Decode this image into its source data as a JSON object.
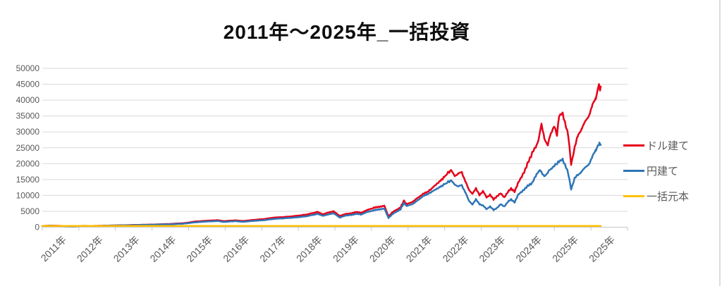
{
  "chart_data": {
    "type": "line",
    "title": "2011年～2025年_一括投資",
    "x_tick_labels": [
      "2011年",
      "2012年",
      "2013年",
      "2014年",
      "2015年",
      "2016年",
      "2017年",
      "2018年",
      "2019年",
      "2020年",
      "2021年",
      "2022年",
      "2023年",
      "2024年",
      "2025年",
      "2025年"
    ],
    "y_ticks": [
      0,
      5000,
      10000,
      15000,
      20000,
      25000,
      30000,
      35000,
      40000,
      45000,
      50000
    ],
    "ylim": [
      0,
      50000
    ],
    "grid": "horizontal",
    "legend_position": "right",
    "axis_text_color": "#595959",
    "gridline_color": "#d9d9d9",
    "axis_line_color": "#c6c6c6",
    "frame_right_border_color": "#dcdcdc",
    "series": [
      {
        "name": "ドル建て",
        "color": "#e60019",
        "jagged": true,
        "points": [
          [
            0,
            400
          ],
          [
            0.0145,
            470
          ],
          [
            0.0301,
            430
          ],
          [
            0.0422,
            360
          ],
          [
            0.0542,
            340
          ],
          [
            0.0699,
            420
          ],
          [
            0.0843,
            400
          ],
          [
            0.1024,
            450
          ],
          [
            0.1241,
            560
          ],
          [
            0.1446,
            650
          ],
          [
            0.1687,
            750
          ],
          [
            0.1867,
            820
          ],
          [
            0.1976,
            900
          ],
          [
            0.2169,
            1000
          ],
          [
            0.241,
            1250
          ],
          [
            0.2627,
            1800
          ],
          [
            0.2831,
            2050
          ],
          [
            0.2988,
            2200
          ],
          [
            0.3108,
            1900
          ],
          [
            0.3289,
            2150
          ],
          [
            0.3434,
            1950
          ],
          [
            0.3614,
            2300
          ],
          [
            0.3795,
            2550
          ],
          [
            0.3952,
            3000
          ],
          [
            0.4133,
            3200
          ],
          [
            0.4313,
            3500
          ],
          [
            0.4494,
            3900
          ],
          [
            0.4614,
            4400
          ],
          [
            0.4699,
            4800
          ],
          [
            0.4795,
            4100
          ],
          [
            0.4892,
            4600
          ],
          [
            0.4976,
            5000
          ],
          [
            0.5084,
            3500
          ],
          [
            0.5181,
            4200
          ],
          [
            0.5265,
            4300
          ],
          [
            0.5361,
            4800
          ],
          [
            0.5446,
            4500
          ],
          [
            0.5542,
            5300
          ],
          [
            0.5663,
            6100
          ],
          [
            0.5759,
            6400
          ],
          [
            0.5843,
            6800
          ],
          [
            0.5916,
            3300
          ],
          [
            0.5976,
            4600
          ],
          [
            0.6024,
            5200
          ],
          [
            0.612,
            6200
          ],
          [
            0.6181,
            8300
          ],
          [
            0.6229,
            7200
          ],
          [
            0.6325,
            8000
          ],
          [
            0.641,
            9200
          ],
          [
            0.6506,
            10500
          ],
          [
            0.6578,
            11000
          ],
          [
            0.6651,
            12000
          ],
          [
            0.6747,
            13800
          ],
          [
            0.6819,
            15000
          ],
          [
            0.6867,
            15800
          ],
          [
            0.6916,
            16800
          ],
          [
            0.6988,
            17800
          ],
          [
            0.7048,
            16200
          ],
          [
            0.7108,
            16800
          ],
          [
            0.7169,
            17300
          ],
          [
            0.7229,
            14500
          ],
          [
            0.7289,
            11700
          ],
          [
            0.7349,
            10600
          ],
          [
            0.741,
            12100
          ],
          [
            0.747,
            10200
          ],
          [
            0.753,
            11300
          ],
          [
            0.759,
            9400
          ],
          [
            0.7651,
            10200
          ],
          [
            0.7711,
            8700
          ],
          [
            0.7771,
            9800
          ],
          [
            0.7831,
            10600
          ],
          [
            0.7892,
            9400
          ],
          [
            0.7952,
            11000
          ],
          [
            0.8012,
            12100
          ],
          [
            0.8072,
            11300
          ],
          [
            0.8133,
            13900
          ],
          [
            0.8193,
            16100
          ],
          [
            0.8253,
            18000
          ],
          [
            0.8313,
            21000
          ],
          [
            0.8373,
            23500
          ],
          [
            0.8446,
            25500
          ],
          [
            0.8482,
            27500
          ],
          [
            0.853,
            32500
          ],
          [
            0.8578,
            28000
          ],
          [
            0.8639,
            25800
          ],
          [
            0.8687,
            29400
          ],
          [
            0.8747,
            31700
          ],
          [
            0.8795,
            29100
          ],
          [
            0.8831,
            35000
          ],
          [
            0.8892,
            35700
          ],
          [
            0.8952,
            31700
          ],
          [
            0.8988,
            28800
          ],
          [
            0.9036,
            19900
          ],
          [
            0.9096,
            25000
          ],
          [
            0.9157,
            29100
          ],
          [
            0.9217,
            31000
          ],
          [
            0.9277,
            33200
          ],
          [
            0.9337,
            35000
          ],
          [
            0.9398,
            38300
          ],
          [
            0.9458,
            40600
          ],
          [
            0.9494,
            43500
          ],
          [
            0.9512,
            45500
          ],
          [
            0.953,
            43000
          ],
          [
            0.9542,
            44300
          ]
        ]
      },
      {
        "name": "円建て",
        "color": "#2e75b6",
        "jagged": true,
        "points": [
          [
            0,
            400
          ],
          [
            0.0145,
            450
          ],
          [
            0.0422,
            340
          ],
          [
            0.0542,
            320
          ],
          [
            0.0699,
            400
          ],
          [
            0.0843,
            390
          ],
          [
            0.1024,
            430
          ],
          [
            0.1241,
            520
          ],
          [
            0.1446,
            600
          ],
          [
            0.1687,
            690
          ],
          [
            0.1976,
            820
          ],
          [
            0.2169,
            900
          ],
          [
            0.241,
            1100
          ],
          [
            0.2627,
            1550
          ],
          [
            0.2831,
            1800
          ],
          [
            0.2988,
            1950
          ],
          [
            0.3108,
            1650
          ],
          [
            0.3289,
            1900
          ],
          [
            0.3434,
            1700
          ],
          [
            0.3614,
            2000
          ],
          [
            0.3795,
            2200
          ],
          [
            0.3952,
            2600
          ],
          [
            0.4133,
            2800
          ],
          [
            0.4313,
            3050
          ],
          [
            0.4494,
            3400
          ],
          [
            0.4614,
            3800
          ],
          [
            0.4699,
            4200
          ],
          [
            0.4795,
            3600
          ],
          [
            0.4892,
            4000
          ],
          [
            0.4976,
            4400
          ],
          [
            0.5084,
            3000
          ],
          [
            0.5181,
            3700
          ],
          [
            0.5265,
            3800
          ],
          [
            0.5361,
            4200
          ],
          [
            0.5446,
            4000
          ],
          [
            0.5542,
            4700
          ],
          [
            0.5663,
            5300
          ],
          [
            0.5759,
            5600
          ],
          [
            0.5843,
            5900
          ],
          [
            0.5916,
            2900
          ],
          [
            0.5976,
            4000
          ],
          [
            0.6024,
            4600
          ],
          [
            0.612,
            5600
          ],
          [
            0.6181,
            7600
          ],
          [
            0.6229,
            6600
          ],
          [
            0.6325,
            7300
          ],
          [
            0.641,
            8400
          ],
          [
            0.6506,
            9800
          ],
          [
            0.6578,
            10300
          ],
          [
            0.6651,
            11000
          ],
          [
            0.6747,
            12200
          ],
          [
            0.6819,
            13000
          ],
          [
            0.6867,
            13500
          ],
          [
            0.6916,
            14000
          ],
          [
            0.6988,
            14600
          ],
          [
            0.7048,
            13500
          ],
          [
            0.7108,
            12800
          ],
          [
            0.7169,
            13200
          ],
          [
            0.7229,
            11000
          ],
          [
            0.7289,
            8300
          ],
          [
            0.7349,
            7200
          ],
          [
            0.741,
            8700
          ],
          [
            0.747,
            7300
          ],
          [
            0.753,
            6800
          ],
          [
            0.759,
            5700
          ],
          [
            0.7651,
            6500
          ],
          [
            0.7711,
            5400
          ],
          [
            0.7771,
            6100
          ],
          [
            0.7831,
            7200
          ],
          [
            0.7892,
            6500
          ],
          [
            0.7952,
            7900
          ],
          [
            0.8012,
            8700
          ],
          [
            0.8072,
            7900
          ],
          [
            0.8133,
            10200
          ],
          [
            0.8193,
            11300
          ],
          [
            0.8253,
            12100
          ],
          [
            0.8313,
            13300
          ],
          [
            0.8373,
            14000
          ],
          [
            0.8446,
            16500
          ],
          [
            0.8506,
            18000
          ],
          [
            0.8578,
            16100
          ],
          [
            0.8639,
            17200
          ],
          [
            0.8687,
            18300
          ],
          [
            0.8747,
            19200
          ],
          [
            0.8795,
            20100
          ],
          [
            0.8831,
            20600
          ],
          [
            0.8892,
            21200
          ],
          [
            0.8952,
            19000
          ],
          [
            0.8988,
            16800
          ],
          [
            0.9036,
            12000
          ],
          [
            0.9096,
            15400
          ],
          [
            0.9157,
            16500
          ],
          [
            0.9217,
            17600
          ],
          [
            0.9277,
            18700
          ],
          [
            0.9337,
            19800
          ],
          [
            0.9398,
            22100
          ],
          [
            0.9458,
            24300
          ],
          [
            0.9494,
            25700
          ],
          [
            0.9518,
            26400
          ],
          [
            0.9542,
            25900
          ]
        ]
      },
      {
        "name": "一括元本",
        "color": "#ffc000",
        "jagged": false,
        "points": [
          [
            0,
            400
          ],
          [
            0.9542,
            400
          ]
        ]
      }
    ]
  }
}
